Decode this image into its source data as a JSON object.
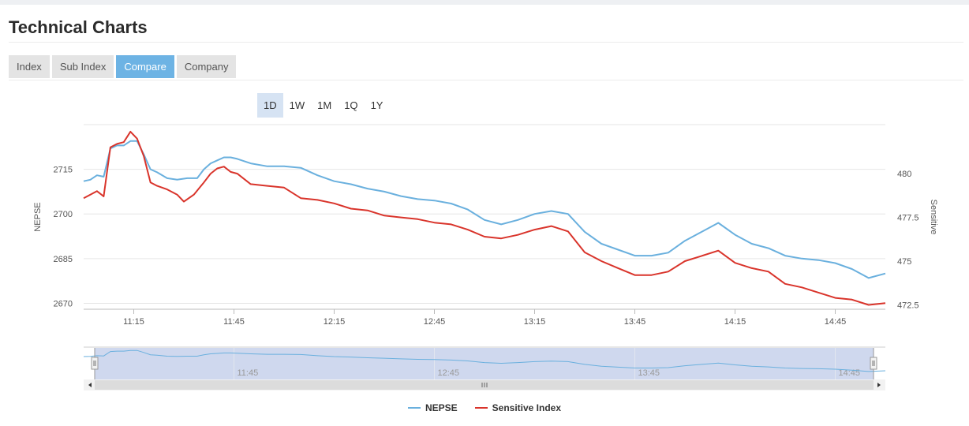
{
  "page": {
    "title": "Technical Charts"
  },
  "tabs": [
    {
      "label": "Index",
      "active": false
    },
    {
      "label": "Sub Index",
      "active": false
    },
    {
      "label": "Compare",
      "active": true
    },
    {
      "label": "Company",
      "active": false
    }
  ],
  "ranges": [
    {
      "label": "1D",
      "active": true
    },
    {
      "label": "1W",
      "active": false
    },
    {
      "label": "1M",
      "active": false
    },
    {
      "label": "1Q",
      "active": false
    },
    {
      "label": "1Y",
      "active": false
    }
  ],
  "colors": {
    "nepse": "#6ab0de",
    "sensitive": "#d9342b",
    "navigator_fill": "#cfd8ee",
    "scrollbar": "#dcdcdc"
  },
  "chart_data": {
    "type": "line",
    "title": "",
    "xlabel": "",
    "x_ticks": [
      "11:15",
      "11:45",
      "12:15",
      "12:45",
      "13:15",
      "13:45",
      "14:15",
      "14:45"
    ],
    "x_range": [
      "11:00",
      "15:00"
    ],
    "y_left": {
      "label": "NEPSE",
      "ticks": [
        2670,
        2685,
        2700,
        2715
      ],
      "range": [
        2668,
        2730
      ]
    },
    "y_right": {
      "label": "Sensitive",
      "ticks": [
        "472.5",
        "475",
        "477.5",
        "480"
      ],
      "range": [
        472.25,
        482.8
      ]
    },
    "grid": true,
    "legend_position": "bottom-center",
    "series": [
      {
        "name": "NEPSE",
        "axis": "left",
        "points": [
          [
            "11:00",
            2711
          ],
          [
            "11:02",
            2711.5
          ],
          [
            "11:04",
            2713
          ],
          [
            "11:06",
            2712.5
          ],
          [
            "11:08",
            2722
          ],
          [
            "11:10",
            2723
          ],
          [
            "11:12",
            2723
          ],
          [
            "11:14",
            2724.5
          ],
          [
            "11:16",
            2724.5
          ],
          [
            "11:18",
            2720
          ],
          [
            "11:20",
            2715
          ],
          [
            "11:22",
            2714
          ],
          [
            "11:25",
            2712
          ],
          [
            "11:28",
            2711.5
          ],
          [
            "11:31",
            2712
          ],
          [
            "11:34",
            2712
          ],
          [
            "11:36",
            2715
          ],
          [
            "11:38",
            2717
          ],
          [
            "11:40",
            2718
          ],
          [
            "11:42",
            2719
          ],
          [
            "11:44",
            2719
          ],
          [
            "11:46",
            2718.5
          ],
          [
            "11:50",
            2717
          ],
          [
            "11:55",
            2716
          ],
          [
            "12:00",
            2716
          ],
          [
            "12:05",
            2715.5
          ],
          [
            "12:10",
            2713
          ],
          [
            "12:15",
            2711
          ],
          [
            "12:20",
            2710
          ],
          [
            "12:25",
            2708.5
          ],
          [
            "12:30",
            2707.5
          ],
          [
            "12:35",
            2706
          ],
          [
            "12:40",
            2705
          ],
          [
            "12:45",
            2704.5
          ],
          [
            "12:50",
            2703.5
          ],
          [
            "12:55",
            2701.5
          ],
          [
            "13:00",
            2698
          ],
          [
            "13:05",
            2696.5
          ],
          [
            "13:10",
            2698
          ],
          [
            "13:15",
            2700
          ],
          [
            "13:20",
            2701
          ],
          [
            "13:25",
            2700
          ],
          [
            "13:30",
            2694
          ],
          [
            "13:35",
            2690
          ],
          [
            "13:40",
            2688
          ],
          [
            "13:45",
            2686
          ],
          [
            "13:50",
            2686
          ],
          [
            "13:55",
            2687
          ],
          [
            "14:00",
            2691
          ],
          [
            "14:05",
            2694
          ],
          [
            "14:10",
            2697
          ],
          [
            "14:15",
            2693
          ],
          [
            "14:20",
            2690
          ],
          [
            "14:25",
            2688.5
          ],
          [
            "14:30",
            2686
          ],
          [
            "14:35",
            2685
          ],
          [
            "14:40",
            2684.5
          ],
          [
            "14:45",
            2683.5
          ],
          [
            "14:50",
            2681.5
          ],
          [
            "14:55",
            2678.5
          ],
          [
            "15:00",
            2680
          ]
        ]
      },
      {
        "name": "Sensitive Index",
        "axis": "right",
        "points": [
          [
            "11:00",
            478.6
          ],
          [
            "11:02",
            478.8
          ],
          [
            "11:04",
            479
          ],
          [
            "11:06",
            478.7
          ],
          [
            "11:08",
            481.5
          ],
          [
            "11:10",
            481.7
          ],
          [
            "11:12",
            481.8
          ],
          [
            "11:14",
            482.4
          ],
          [
            "11:16",
            482
          ],
          [
            "11:18",
            481
          ],
          [
            "11:20",
            479.5
          ],
          [
            "11:22",
            479.3
          ],
          [
            "11:25",
            479.1
          ],
          [
            "11:28",
            478.8
          ],
          [
            "11:30",
            478.4
          ],
          [
            "11:33",
            478.8
          ],
          [
            "11:36",
            479.5
          ],
          [
            "11:38",
            480
          ],
          [
            "11:40",
            480.3
          ],
          [
            "11:42",
            480.4
          ],
          [
            "11:44",
            480.1
          ],
          [
            "11:46",
            480
          ],
          [
            "11:50",
            479.4
          ],
          [
            "11:55",
            479.3
          ],
          [
            "12:00",
            479.2
          ],
          [
            "12:05",
            478.6
          ],
          [
            "12:10",
            478.5
          ],
          [
            "12:15",
            478.3
          ],
          [
            "12:20",
            478
          ],
          [
            "12:25",
            477.9
          ],
          [
            "12:30",
            477.6
          ],
          [
            "12:35",
            477.5
          ],
          [
            "12:40",
            477.4
          ],
          [
            "12:45",
            477.2
          ],
          [
            "12:50",
            477.1
          ],
          [
            "12:55",
            476.8
          ],
          [
            "13:00",
            476.4
          ],
          [
            "13:05",
            476.3
          ],
          [
            "13:10",
            476.5
          ],
          [
            "13:15",
            476.8
          ],
          [
            "13:20",
            477
          ],
          [
            "13:25",
            476.7
          ],
          [
            "13:30",
            475.5
          ],
          [
            "13:35",
            475
          ],
          [
            "13:40",
            474.6
          ],
          [
            "13:45",
            474.2
          ],
          [
            "13:50",
            474.2
          ],
          [
            "13:55",
            474.4
          ],
          [
            "14:00",
            475
          ],
          [
            "14:05",
            475.3
          ],
          [
            "14:10",
            475.6
          ],
          [
            "14:15",
            474.9
          ],
          [
            "14:20",
            474.6
          ],
          [
            "14:25",
            474.4
          ],
          [
            "14:30",
            473.7
          ],
          [
            "14:35",
            473.5
          ],
          [
            "14:40",
            473.2
          ],
          [
            "14:45",
            472.9
          ],
          [
            "14:50",
            472.8
          ],
          [
            "14:55",
            472.5
          ],
          [
            "15:00",
            472.6
          ]
        ]
      }
    ],
    "navigator": {
      "ticks": [
        "11:45",
        "12:45",
        "13:45",
        "14:45"
      ]
    }
  }
}
